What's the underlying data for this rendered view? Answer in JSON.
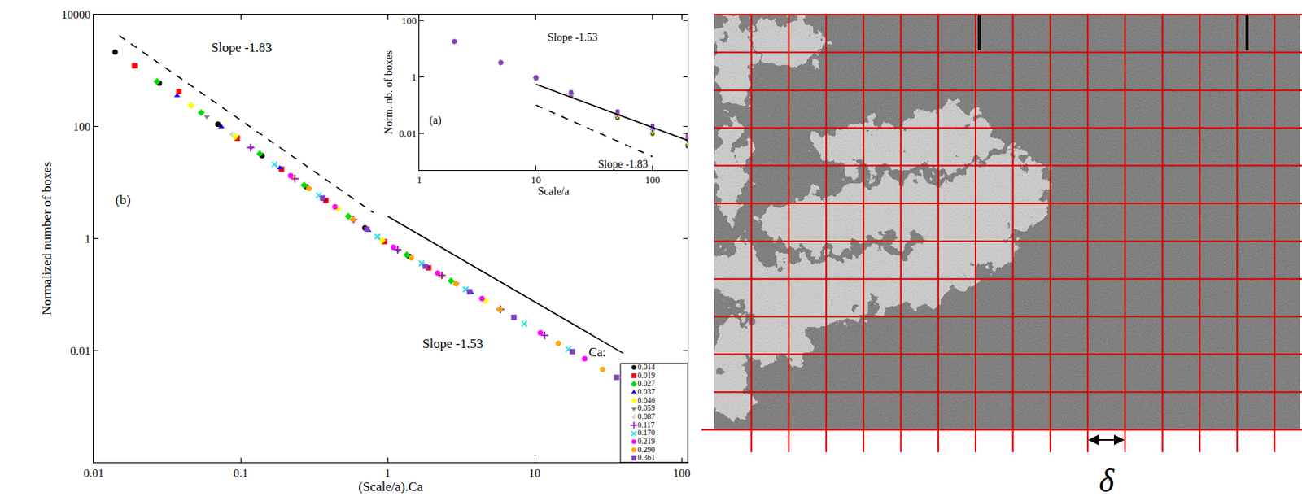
{
  "chart_data": [
    {
      "type": "scatter",
      "panel": "(b)",
      "x_label": "(Scale/a).Ca",
      "y_label": "Normalized number of boxes",
      "log": true,
      "grid": false,
      "xlim": [
        0.01,
        110
      ],
      "ylim": [
        0.0001,
        10000
      ],
      "xticks": [
        0.01,
        0.1,
        1,
        10,
        100
      ],
      "yticks": [
        0.01,
        1,
        100,
        10000
      ],
      "legend": "bottom right",
      "legend_title": "Ca:",
      "series": [
        {
          "name": "0.014",
          "color": "#000000",
          "marker": "circle",
          "x": [
            0.014,
            0.028,
            0.07,
            0.14,
            0.28,
            0.7,
            1.4
          ],
          "values": [
            2150,
            597,
            110,
            30.4,
            8.4,
            1.55,
            0.48
          ]
        },
        {
          "name": "0.019",
          "color": "#ff0000",
          "marker": "square",
          "x": [
            0.019,
            0.038,
            0.095,
            0.19,
            0.38,
            0.95,
            1.9
          ],
          "values": [
            1222,
            424,
            62,
            17.3,
            4.8,
            0.88,
            0.3
          ]
        },
        {
          "name": "0.027",
          "color": "#00dd00",
          "marker": "diamond",
          "x": [
            0.027,
            0.054,
            0.135,
            0.27,
            0.54,
            1.35,
            2.7
          ],
          "values": [
            640,
            177,
            32.6,
            9,
            2.5,
            0.51,
            0.175
          ]
        },
        {
          "name": "0.037",
          "color": "#0000ff",
          "marker": "triangle-up",
          "x": [
            0.037,
            0.074,
            0.185,
            0.37,
            0.74,
            1.85,
            3.7
          ],
          "values": [
            357,
            99,
            18.2,
            5,
            1.4,
            0.31,
            0.108
          ]
        },
        {
          "name": "0.046",
          "color": "#ffff00",
          "marker": "diamond",
          "x": [
            0.046,
            0.092,
            0.23,
            0.46,
            0.92,
            2.3,
            4.6
          ],
          "values": [
            238,
            66,
            12.1,
            3.4,
            0.93,
            0.22,
            0.077
          ]
        },
        {
          "name": "0.059",
          "color": "#808080",
          "marker": "triangle-down",
          "x": [
            0.059,
            0.118,
            0.295,
            0.59,
            1.18,
            2.95,
            5.9
          ],
          "values": [
            150,
            42,
            7.7,
            2.1,
            0.62,
            0.153,
            0.053
          ]
        },
        {
          "name": "0.087",
          "color": "#d3d3d3",
          "marker": "triangle-left",
          "x": [
            0.087,
            0.174,
            0.435,
            0.87,
            1.74,
            4.35,
            8.7
          ],
          "values": [
            73,
            20.3,
            3.7,
            1.03,
            0.34,
            0.084,
            0.029
          ]
        },
        {
          "name": "0.117",
          "color": "#9400d3",
          "marker": "cross-thin",
          "x": [
            0.117,
            0.234,
            0.585,
            1.17,
            2.34,
            5.85,
            11.7
          ],
          "values": [
            42,
            11.7,
            2.2,
            0.63,
            0.22,
            0.054,
            0.0186
          ]
        },
        {
          "name": "0.170",
          "color": "#00e5ee",
          "marker": "x-thin",
          "x": [
            0.17,
            0.34,
            0.85,
            1.7,
            3.4,
            8.5,
            17
          ],
          "values": [
            21,
            5.9,
            1.08,
            0.36,
            0.123,
            0.03,
            0.0105
          ]
        },
        {
          "name": "0.219",
          "color": "#ff00ff",
          "marker": "circle",
          "x": [
            0.219,
            0.438,
            1.095,
            2.19,
            4.38,
            10.95,
            21.9
          ],
          "values": [
            13.3,
            3.7,
            0.7,
            0.24,
            0.084,
            0.0206,
            0.0071
          ]
        },
        {
          "name": "0.290",
          "color": "#ffa500",
          "marker": "circle",
          "x": [
            0.29,
            0.58,
            1.45,
            2.9,
            5.8,
            14.5,
            29
          ],
          "values": [
            7.9,
            2.2,
            0.45,
            0.157,
            0.054,
            0.0134,
            0.0046
          ]
        },
        {
          "name": "0.361",
          "color": "#7f3fbf",
          "marker": "square",
          "x": [
            0.361,
            0.722,
            1.805,
            3.61,
            7.22,
            18.05,
            36.1
          ],
          "values": [
            5.3,
            1.46,
            0.32,
            0.112,
            0.039,
            0.0095,
            0.0033
          ]
        }
      ],
      "reference_lines": [
        {
          "label": "Slope -1.83",
          "x": [
            0.015,
            0.8
          ],
          "values": [
            4200,
            2.9
          ],
          "line_style": "dashed",
          "color": "#000000"
        },
        {
          "label": "Slope -1.53",
          "x": [
            1,
            40
          ],
          "values": [
            2.5,
            0.0089
          ],
          "line_style": "solid",
          "color": "#000000"
        }
      ]
    },
    {
      "type": "scatter",
      "panel": "(a)",
      "x_label": "Scale/a",
      "y_label": "Norm. nb. of boxes",
      "log": true,
      "grid": false,
      "xlim": [
        1,
        200
      ],
      "ylim": [
        0.0005,
        160
      ],
      "xticks": [
        1,
        10,
        100
      ],
      "yticks": [
        0.01,
        1,
        100
      ],
      "x": [
        2,
        5,
        10,
        20,
        50,
        100,
        200
      ],
      "series": [
        {
          "name": "0.014",
          "color": "#000000",
          "marker": "circle",
          "values": [
            18,
            3.2,
            0.9,
            0.22,
            0.035,
            0.0095,
            0.0035
          ]
        },
        {
          "name": "0.019",
          "color": "#ff0000",
          "marker": "square",
          "values": [
            18,
            3.2,
            0.9,
            0.225,
            0.037,
            0.01,
            0.0038
          ]
        },
        {
          "name": "0.027",
          "color": "#00dd00",
          "marker": "diamond",
          "values": [
            18,
            3.2,
            0.9,
            0.23,
            0.038,
            0.0105,
            0.004
          ]
        },
        {
          "name": "0.037",
          "color": "#0000ff",
          "marker": "triangle-up",
          "values": [
            18,
            3.2,
            0.91,
            0.235,
            0.04,
            0.011,
            0.0043
          ]
        },
        {
          "name": "0.046",
          "color": "#ffff00",
          "marker": "diamond",
          "values": [
            18,
            3.2,
            0.91,
            0.24,
            0.041,
            0.0115,
            0.0046
          ]
        },
        {
          "name": "0.059",
          "color": "#808080",
          "marker": "triangle-down",
          "values": [
            18,
            3.2,
            0.92,
            0.245,
            0.043,
            0.012,
            0.005
          ]
        },
        {
          "name": "0.087",
          "color": "#d3d3d3",
          "marker": "triangle-left",
          "values": [
            18,
            3.2,
            0.92,
            0.25,
            0.045,
            0.013,
            0.0054
          ]
        },
        {
          "name": "0.117",
          "color": "#9400d3",
          "marker": "cross-thin",
          "values": [
            18,
            3.2,
            0.93,
            0.255,
            0.047,
            0.014,
            0.006
          ]
        },
        {
          "name": "0.170",
          "color": "#00e5ee",
          "marker": "x-thin",
          "values": [
            18,
            3.2,
            0.93,
            0.26,
            0.05,
            0.015,
            0.0065
          ]
        },
        {
          "name": "0.219",
          "color": "#ff00ff",
          "marker": "circle",
          "values": [
            18,
            3.2,
            0.94,
            0.27,
            0.053,
            0.016,
            0.007
          ]
        },
        {
          "name": "0.290",
          "color": "#ffa500",
          "marker": "circle",
          "values": [
            18,
            3.2,
            0.95,
            0.28,
            0.056,
            0.017,
            0.008
          ]
        },
        {
          "name": "0.361",
          "color": "#7f3fbf",
          "marker": "square",
          "values": [
            18,
            3.2,
            0.96,
            0.29,
            0.06,
            0.019,
            0.009
          ]
        }
      ],
      "reference_lines": [
        {
          "label": "Slope -1.53",
          "x": [
            10,
            200
          ],
          "values": [
            0.55,
            0.0056
          ],
          "line_style": "solid",
          "color": "#000000"
        },
        {
          "label": "Slope -1.83",
          "x": [
            10,
            100
          ],
          "values": [
            0.1,
            0.0015
          ],
          "line_style": "dashed",
          "color": "#000000"
        }
      ]
    }
  ],
  "grid_image": {
    "spacing_label": "δ"
  }
}
